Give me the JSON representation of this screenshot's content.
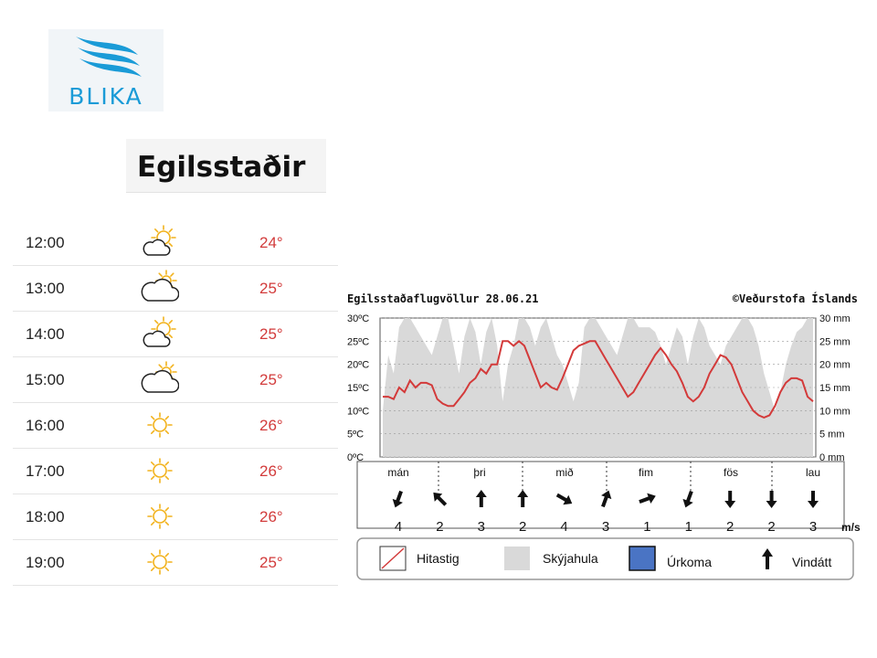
{
  "logo": {
    "text": "BLIKA"
  },
  "location": {
    "name": "Egilsstaðir"
  },
  "forecast": [
    {
      "time": "12:00",
      "icon": "sun-cloud-icon",
      "temp": "24°"
    },
    {
      "time": "13:00",
      "icon": "cloud-sun-icon",
      "temp": "25°"
    },
    {
      "time": "14:00",
      "icon": "sun-cloud-icon",
      "temp": "25°"
    },
    {
      "time": "15:00",
      "icon": "cloud-sun-icon",
      "temp": "25°"
    },
    {
      "time": "16:00",
      "icon": "sun-icon",
      "temp": "26°"
    },
    {
      "time": "17:00",
      "icon": "sun-icon",
      "temp": "26°"
    },
    {
      "time": "18:00",
      "icon": "sun-icon",
      "temp": "26°"
    },
    {
      "time": "19:00",
      "icon": "sun-icon",
      "temp": "25°"
    }
  ],
  "colors": {
    "temp_line": "#d33a3a",
    "cloud": "#d9d9d9",
    "precip": "#4a74c4",
    "icon_sun": "#f2b21c"
  },
  "chart_data": {
    "type": "line",
    "title": "Egilsstaðaflugvöllur 28.06.21",
    "credit": "©Veðurstofa Íslands",
    "y_left_ticks": [
      "30ºC",
      "25ºC",
      "20ºC",
      "15ºC",
      "10ºC",
      "5ºC",
      "0ºC"
    ],
    "y_right_ticks": [
      "30 mm",
      "25 mm",
      "20 mm",
      "15 mm",
      "10 mm",
      "5 mm",
      "0 mm"
    ],
    "ylim": [
      0,
      30
    ],
    "days": [
      "mán",
      "þri",
      "mið",
      "fim",
      "fös",
      "lau"
    ],
    "temperature": [
      13,
      13,
      12.5,
      15,
      14,
      16.5,
      15,
      16,
      16,
      15.5,
      12.5,
      11.5,
      11,
      11,
      12.5,
      14,
      16,
      17,
      19,
      18,
      20,
      20,
      25,
      25,
      24,
      25,
      24,
      21,
      18,
      15,
      16,
      15,
      14.5,
      17,
      20,
      23,
      24,
      24.5,
      25,
      25,
      23,
      21,
      19,
      17,
      15,
      13,
      14,
      16,
      18,
      20,
      22,
      23.5,
      22,
      20,
      18.5,
      16,
      13,
      12,
      13,
      15,
      18,
      20,
      22,
      21.5,
      20,
      17,
      14,
      12,
      10,
      9,
      8.5,
      9,
      11,
      14,
      16,
      17,
      17,
      16.5,
      13,
      12
    ],
    "cloud_cover": [
      10,
      22,
      18,
      28,
      30,
      30,
      28,
      26,
      24,
      22,
      26,
      30,
      30,
      24,
      18,
      26,
      30,
      27,
      20,
      27,
      30,
      24,
      12,
      20,
      24,
      30,
      30,
      28,
      24,
      28,
      30,
      26,
      22,
      20,
      16,
      12,
      16,
      28,
      30,
      30,
      28,
      26,
      24,
      22,
      26,
      30,
      30,
      28,
      28,
      28,
      27,
      24,
      20,
      24,
      28,
      26,
      20,
      26,
      30,
      28,
      24,
      22,
      20,
      24,
      26,
      28,
      30,
      30,
      28,
      24,
      18,
      14,
      10,
      14,
      20,
      24,
      27,
      28,
      30,
      30
    ],
    "wind": [
      {
        "angle": 200,
        "speed": "4"
      },
      {
        "angle": -45,
        "speed": "2"
      },
      {
        "angle": 0,
        "speed": "3"
      },
      {
        "angle": 0,
        "speed": "2"
      },
      {
        "angle": 120,
        "speed": "4"
      },
      {
        "angle": 20,
        "speed": "3"
      },
      {
        "angle": 70,
        "speed": "1"
      },
      {
        "angle": 200,
        "speed": "1"
      },
      {
        "angle": 180,
        "speed": "2"
      },
      {
        "angle": 180,
        "speed": "2"
      },
      {
        "angle": 180,
        "speed": "3"
      }
    ],
    "wind_unit": "m/s",
    "legend": {
      "temp": "Hitastig",
      "cloud": "Skýjahula",
      "precip": "Úrkoma",
      "wind": "Vindátt"
    }
  }
}
